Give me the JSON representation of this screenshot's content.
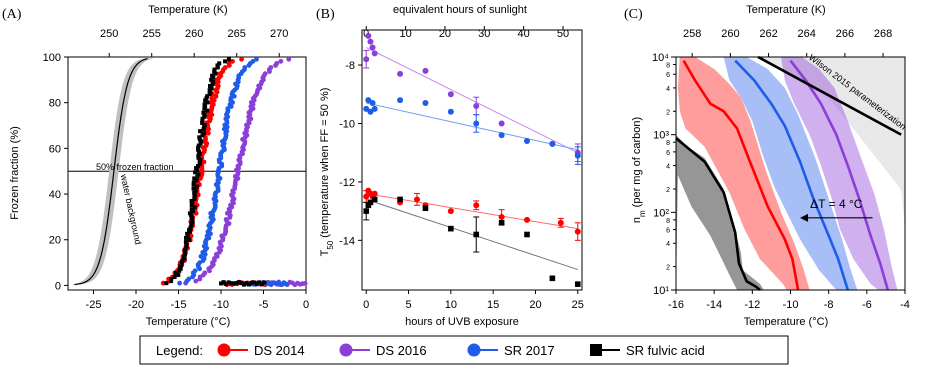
{
  "colors": {
    "ds2014": "#ff0000",
    "ds2016": "#8c3fd6",
    "sr2017": "#1f5ce8",
    "sr_fulvic": "#000000",
    "ds2014_fit": "#ff6b6b",
    "ds2016_fit": "#c48af0",
    "sr2017_fit": "#6f9df5",
    "sr_fulvic_fit": "#777777",
    "water_band": "#c0c0c0",
    "wilson_band": "#e8e8e8"
  },
  "legend": {
    "title": "Legend:",
    "placement": "bottom",
    "entries": [
      {
        "label": "DS 2014",
        "color": "#ff0000",
        "marker": "circle"
      },
      {
        "label": "DS 2016",
        "color": "#8c3fd6",
        "marker": "circle"
      },
      {
        "label": "SR 2017",
        "color": "#1f5ce8",
        "marker": "circle"
      },
      {
        "label": "SR fulvic acid",
        "color": "#000000",
        "marker": "square"
      }
    ]
  },
  "chart_data": [
    {
      "panel": "(A)",
      "type": "scatter",
      "xlabel": "Temperature (°C)",
      "ylabel": "Frozen fraction (%)",
      "x2label": "Temperature (K)",
      "xlim": [
        -28,
        0
      ],
      "ylim": [
        -2,
        100
      ],
      "xticks": [
        -25,
        -20,
        -15,
        -10,
        -5,
        0
      ],
      "yticks": [
        0,
        20,
        40,
        60,
        80,
        100
      ],
      "x2ticks": [
        245,
        250,
        255,
        260,
        265,
        270
      ],
      "hline": {
        "y": 50,
        "label": "50% frozen fraction"
      },
      "band_label": "water background",
      "series": [
        {
          "name": "DS 2014",
          "type": "curves",
          "x50": -12.4,
          "width": 1.0,
          "color": "#ff0000"
        },
        {
          "name": "DS 2016",
          "type": "curves",
          "x50": -8.0,
          "width": 1.3,
          "color": "#8c3fd6"
        },
        {
          "name": "SR 2017",
          "type": "curves",
          "x50": -10.2,
          "width": 1.0,
          "color": "#1f5ce8"
        },
        {
          "name": "SR fulvic acid",
          "type": "curves",
          "x50": -12.8,
          "width": 0.8,
          "color": "#000000"
        },
        {
          "name": "water background",
          "type": "band",
          "x50": -22.6,
          "width": 0.8,
          "color": "#000000"
        }
      ]
    },
    {
      "panel": "(B)",
      "type": "scatter",
      "xlabel": "hours of UVB exposure",
      "ylabel": "T50 (temperature when FF = 50 %)",
      "x2label": "equivalent hours of sunlight",
      "xlim": [
        -0.5,
        25.5
      ],
      "ylim": [
        -15.7,
        -6.8
      ],
      "xticks": [
        0,
        5,
        10,
        15,
        20,
        25
      ],
      "yticks": [
        -8,
        -10,
        -12,
        -14
      ],
      "x2ticks": [
        0,
        10,
        20,
        30,
        40,
        50
      ],
      "x2_per_x": 2.15,
      "series": [
        {
          "name": "DS 2016",
          "color": "#8c3fd6",
          "x": [
            0,
            0.25,
            0.5,
            0.75,
            1,
            4,
            7,
            10,
            13,
            16,
            22,
            25
          ],
          "y": [
            -7.8,
            -7.0,
            -7.2,
            -7.4,
            -7.6,
            -8.3,
            -8.2,
            -9.0,
            -9.4,
            -10.0,
            -10.7,
            -11.0
          ],
          "err": [
            0.3,
            0,
            0,
            0,
            0,
            0,
            0,
            0,
            0.3,
            0,
            0,
            0.3
          ],
          "fit": [
            -7.4,
            -11.0
          ]
        },
        {
          "name": "SR 2017",
          "color": "#1f5ce8",
          "x": [
            0,
            0.25,
            0.5,
            0.75,
            1,
            4,
            7,
            10,
            13,
            16,
            19,
            22,
            25
          ],
          "y": [
            -9.5,
            -9.2,
            -9.6,
            -9.3,
            -9.5,
            -9.2,
            -9.3,
            -9.6,
            -10.0,
            -10.4,
            -10.6,
            -10.7,
            -11.1
          ],
          "err": [
            0,
            0,
            0,
            0,
            0,
            0,
            0,
            0,
            0.3,
            0,
            0,
            0,
            0.3
          ],
          "fit": [
            -9.3,
            -10.9
          ]
        },
        {
          "name": "DS 2014",
          "color": "#ff0000",
          "x": [
            0,
            0.25,
            0.5,
            0.75,
            1,
            4,
            6,
            7,
            10,
            13,
            16,
            19,
            23,
            25
          ],
          "y": [
            -12.5,
            -12.3,
            -12.4,
            -12.5,
            -12.4,
            -12.7,
            -12.6,
            -12.8,
            -13.0,
            -12.8,
            -13.2,
            -13.3,
            -13.4,
            -13.7
          ],
          "err": [
            0.2,
            0,
            0,
            0,
            0,
            0,
            0.2,
            0,
            0,
            0.15,
            0.25,
            0,
            0.15,
            0.3
          ],
          "fit": [
            -12.4,
            -13.6
          ]
        },
        {
          "name": "SR fulvic acid",
          "color": "#000000",
          "x": [
            0,
            0.25,
            0.5,
            1,
            4,
            7,
            10,
            13,
            16,
            19,
            22,
            25
          ],
          "y": [
            -13.0,
            -12.8,
            -12.7,
            -12.6,
            -12.6,
            -12.9,
            -13.6,
            -13.8,
            -13.4,
            -13.8,
            -15.3,
            -15.5
          ],
          "err": [
            0.3,
            0,
            0,
            0,
            0,
            0,
            0,
            0.6,
            0,
            0,
            0,
            0
          ],
          "fit": [
            -12.6,
            -15.0
          ]
        }
      ]
    },
    {
      "panel": "(C)",
      "type": "area",
      "xlabel": "Temperature (°C)",
      "ylabel": "nm (per mg of carbon)",
      "x2label": "Temperature (K)",
      "yscale": "log",
      "xlim": [
        -16,
        -4
      ],
      "ylim": [
        10,
        10000
      ],
      "xticks": [
        -16,
        -14,
        -12,
        -10,
        -8,
        -6,
        -4
      ],
      "x2ticks": [
        258,
        260,
        262,
        264,
        266,
        268
      ],
      "yticks_major": [
        10,
        100,
        1000,
        10000
      ],
      "yticks_major_labels": [
        "10¹",
        "10²",
        "10³",
        "10⁴"
      ],
      "yticks_minor_labels": [
        "2",
        "4",
        "6",
        "8"
      ],
      "wilson": {
        "label": "Wilson 2015 parameterization",
        "line": [
          [
            -11.7,
            10000
          ],
          [
            -4.2,
            1000
          ]
        ]
      },
      "annotation": {
        "label": "ΔT = 4 °C",
        "arrow_from": -5.7,
        "arrow_to": -9.5,
        "y": 85
      },
      "series": [
        {
          "name": "SR fulvic acid",
          "color": "#000000",
          "lower": [
            [
              -16,
              10
            ],
            [
              -15.9,
              300
            ],
            [
              -15.2,
              120
            ],
            [
              -14.2,
              50
            ],
            [
              -13.6,
              25
            ],
            [
              -13.1,
              14
            ],
            [
              -12.8,
              10
            ]
          ],
          "upper": [
            [
              -16,
              1000
            ],
            [
              -15.4,
              700
            ],
            [
              -14.5,
              500
            ],
            [
              -13.5,
              200
            ],
            [
              -12.9,
              60
            ],
            [
              -12.6,
              30
            ],
            [
              -12.5,
              18
            ],
            [
              -11.6,
              12
            ],
            [
              -11.4,
              10
            ]
          ],
          "line": [
            [
              -16,
              900
            ],
            [
              -15.3,
              650
            ],
            [
              -14.5,
              450
            ],
            [
              -13.5,
              180
            ],
            [
              -12.9,
              55
            ],
            [
              -12.7,
              22
            ],
            [
              -12.3,
              13
            ],
            [
              -11.8,
              11
            ],
            [
              -11.6,
              10
            ]
          ]
        },
        {
          "name": "DS 2014",
          "color": "#ff0000",
          "lower": [
            [
              -15.8,
              10000
            ],
            [
              -15.9,
              4000
            ],
            [
              -15.8,
              2000
            ],
            [
              -15.5,
              1200
            ],
            [
              -14.5,
              700
            ],
            [
              -13.2,
              180
            ],
            [
              -12.4,
              60
            ],
            [
              -11.6,
              25
            ],
            [
              -10.4,
              12
            ],
            [
              -10.2,
              10
            ]
          ],
          "upper": [
            [
              -15.0,
              10000
            ],
            [
              -14.0,
              7000
            ],
            [
              -13.2,
              4500
            ],
            [
              -12.6,
              3000
            ],
            [
              -12.1,
              1500
            ],
            [
              -11.3,
              350
            ],
            [
              -10.5,
              100
            ],
            [
              -9.8,
              40
            ],
            [
              -9.3,
              18
            ],
            [
              -9.0,
              10
            ]
          ],
          "line": [
            [
              -15.6,
              9000
            ],
            [
              -15.0,
              5000
            ],
            [
              -14.2,
              2500
            ],
            [
              -13.5,
              2000
            ],
            [
              -12.8,
              1200
            ],
            [
              -12.2,
              500
            ],
            [
              -11.2,
              120
            ],
            [
              -10.3,
              45
            ],
            [
              -9.9,
              25
            ],
            [
              -9.6,
              10
            ]
          ]
        },
        {
          "name": "SR 2017",
          "color": "#1f5ce8",
          "lower": [
            [
              -13.5,
              10000
            ],
            [
              -13.2,
              5000
            ],
            [
              -12.6,
              3000
            ],
            [
              -12.0,
              1500
            ],
            [
              -11.4,
              500
            ],
            [
              -10.8,
              200
            ],
            [
              -10.2,
              100
            ],
            [
              -9.5,
              45
            ],
            [
              -8.5,
              18
            ],
            [
              -7.6,
              10
            ]
          ],
          "upper": [
            [
              -12.3,
              10000
            ],
            [
              -11.2,
              7000
            ],
            [
              -10.3,
              4000
            ],
            [
              -9.6,
              1800
            ],
            [
              -8.7,
              500
            ],
            [
              -8.0,
              150
            ],
            [
              -7.3,
              45
            ],
            [
              -6.9,
              20
            ],
            [
              -6.5,
              10
            ]
          ],
          "line": [
            [
              -12.9,
              9000
            ],
            [
              -11.9,
              5000
            ],
            [
              -11.0,
              2500
            ],
            [
              -10.3,
              1300
            ],
            [
              -9.5,
              450
            ],
            [
              -8.8,
              150
            ],
            [
              -8.0,
              50
            ],
            [
              -7.5,
              25
            ],
            [
              -7.0,
              10
            ]
          ]
        },
        {
          "name": "DS 2016",
          "color": "#8c3fd6",
          "lower": [
            [
              -10.5,
              10000
            ],
            [
              -10.3,
              5000
            ],
            [
              -9.8,
              2500
            ],
            [
              -9.0,
              1000
            ],
            [
              -8.4,
              400
            ],
            [
              -7.8,
              140
            ],
            [
              -7.4,
              60
            ],
            [
              -6.7,
              25
            ],
            [
              -5.8,
              12
            ],
            [
              -5.4,
              10
            ]
          ],
          "upper": [
            [
              -9.4,
              10000
            ],
            [
              -8.5,
              7000
            ],
            [
              -7.7,
              4000
            ],
            [
              -7.0,
              1500
            ],
            [
              -6.3,
              500
            ],
            [
              -5.6,
              170
            ],
            [
              -5.1,
              60
            ],
            [
              -4.7,
              20
            ],
            [
              -4.4,
              10
            ]
          ],
          "line": [
            [
              -10.0,
              9000
            ],
            [
              -9.2,
              5000
            ],
            [
              -8.4,
              2500
            ],
            [
              -7.6,
              1000
            ],
            [
              -7.0,
              400
            ],
            [
              -6.4,
              150
            ],
            [
              -5.8,
              50
            ],
            [
              -5.3,
              22
            ],
            [
              -4.9,
              10
            ]
          ]
        }
      ]
    }
  ]
}
